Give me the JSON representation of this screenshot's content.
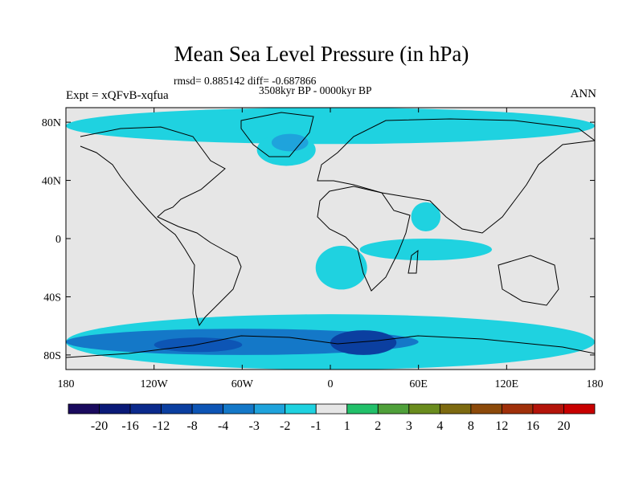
{
  "chart_data": {
    "type": "filled-contour-map",
    "title": "Mean Sea Level Pressure (in hPa)",
    "stats_line": "rmsd= 0.885142 diff= -0.687866",
    "rmsd": 0.885142,
    "diff": -0.687866,
    "period": "3508kyr BP - 0000kyr BP",
    "left_label": "Expt = xQFvB-xqfua",
    "right_label": "ANN",
    "projection": "cylindrical-equidistant",
    "lon_range": [
      -180,
      180
    ],
    "lat_range": [
      -90,
      90
    ],
    "x_ticks": [
      "180",
      "120W",
      "60W",
      "0",
      "60E",
      "120E",
      "180"
    ],
    "x_tick_values": [
      -180,
      -120,
      -60,
      0,
      60,
      120,
      180
    ],
    "y_ticks": [
      "80N",
      "40N",
      "0",
      "40S",
      "80S"
    ],
    "y_tick_values": [
      80,
      40,
      0,
      -40,
      -80
    ],
    "colorbar": {
      "labels": [
        "-20",
        "-16",
        "-12",
        "-8",
        "-4",
        "-3",
        "-2",
        "-1",
        "1",
        "2",
        "3",
        "4",
        "8",
        "12",
        "16",
        "20"
      ],
      "colors": [
        "#1a0a5e",
        "#0a1a78",
        "#0b2a8c",
        "#0b3fa0",
        "#0d55b5",
        "#1478c8",
        "#1fa3dc",
        "#1fd2e0",
        "#e6e6e6",
        "#22c06a",
        "#4fa03a",
        "#6a8c1e",
        "#7d6a10",
        "#8c4a0a",
        "#a0300a",
        "#b4140a",
        "#c80000"
      ]
    },
    "regions": [
      {
        "name": "arctic",
        "lon": [
          -180,
          180
        ],
        "lat": [
          65,
          90
        ],
        "value": -1.5,
        "color": "#1fd2e0"
      },
      {
        "name": "north-atlantic",
        "lon": [
          -50,
          -10
        ],
        "lat": [
          50,
          72
        ],
        "value": -1.5,
        "color": "#1fd2e0"
      },
      {
        "name": "north-atlantic-core",
        "lon": [
          -40,
          -15
        ],
        "lat": [
          60,
          72
        ],
        "value": -2.5,
        "color": "#1fa3dc"
      },
      {
        "name": "arabian-sea",
        "lon": [
          55,
          75
        ],
        "lat": [
          5,
          25
        ],
        "value": -1.5,
        "color": "#1fd2e0"
      },
      {
        "name": "south-indian-ocean",
        "lon": [
          20,
          110
        ],
        "lat": [
          -15,
          0
        ],
        "value": -1.5,
        "color": "#1fd2e0"
      },
      {
        "name": "south-atlantic",
        "lon": [
          -10,
          25
        ],
        "lat": [
          -35,
          -5
        ],
        "value": -1.5,
        "color": "#1fd2e0"
      },
      {
        "name": "southern-ocean",
        "lon": [
          -180,
          180
        ],
        "lat": [
          -90,
          -52
        ],
        "value": -1.5,
        "color": "#1fd2e0"
      },
      {
        "name": "southern-ocean-lows",
        "lon": [
          -180,
          60
        ],
        "lat": [
          -80,
          -62
        ],
        "value": -3.5,
        "color": "#1478c8"
      },
      {
        "name": "weddell-low",
        "lon": [
          0,
          45
        ],
        "lat": [
          -80,
          -63
        ],
        "value": -10,
        "color": "#0b3fa0"
      },
      {
        "name": "pacific-low",
        "lon": [
          -120,
          -60
        ],
        "lat": [
          -78,
          -68
        ],
        "value": -4.5,
        "color": "#0d55b5"
      }
    ]
  }
}
